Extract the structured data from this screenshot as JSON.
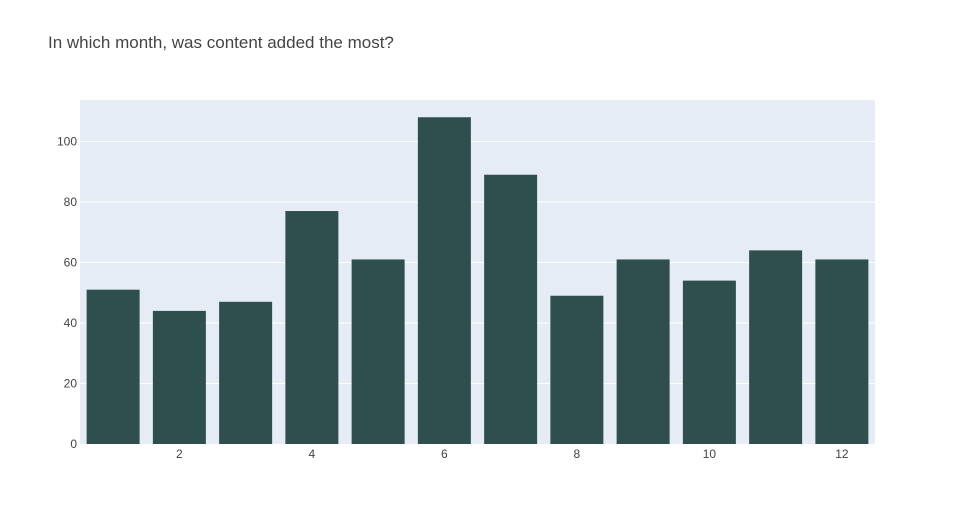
{
  "chart_data": {
    "type": "bar",
    "title": "In which month, was content added the most?",
    "xlabel": "",
    "ylabel": "",
    "x": [
      1,
      2,
      3,
      4,
      5,
      6,
      7,
      8,
      9,
      10,
      11,
      12
    ],
    "values": [
      51,
      44,
      47,
      77,
      61,
      108,
      89,
      49,
      61,
      54,
      64,
      61
    ],
    "xlim": [
      0.5,
      12.5
    ],
    "ylim": [
      0,
      113.7
    ],
    "xticks": [
      2,
      4,
      6,
      8,
      10,
      12
    ],
    "yticks": [
      0,
      20,
      40,
      60,
      80,
      100
    ],
    "grid": true,
    "legend": "none",
    "colors": {
      "bar": "#2f4f4f",
      "plot_background": "#e5ecf6",
      "grid": "#ffffff",
      "text": "#444444"
    }
  }
}
